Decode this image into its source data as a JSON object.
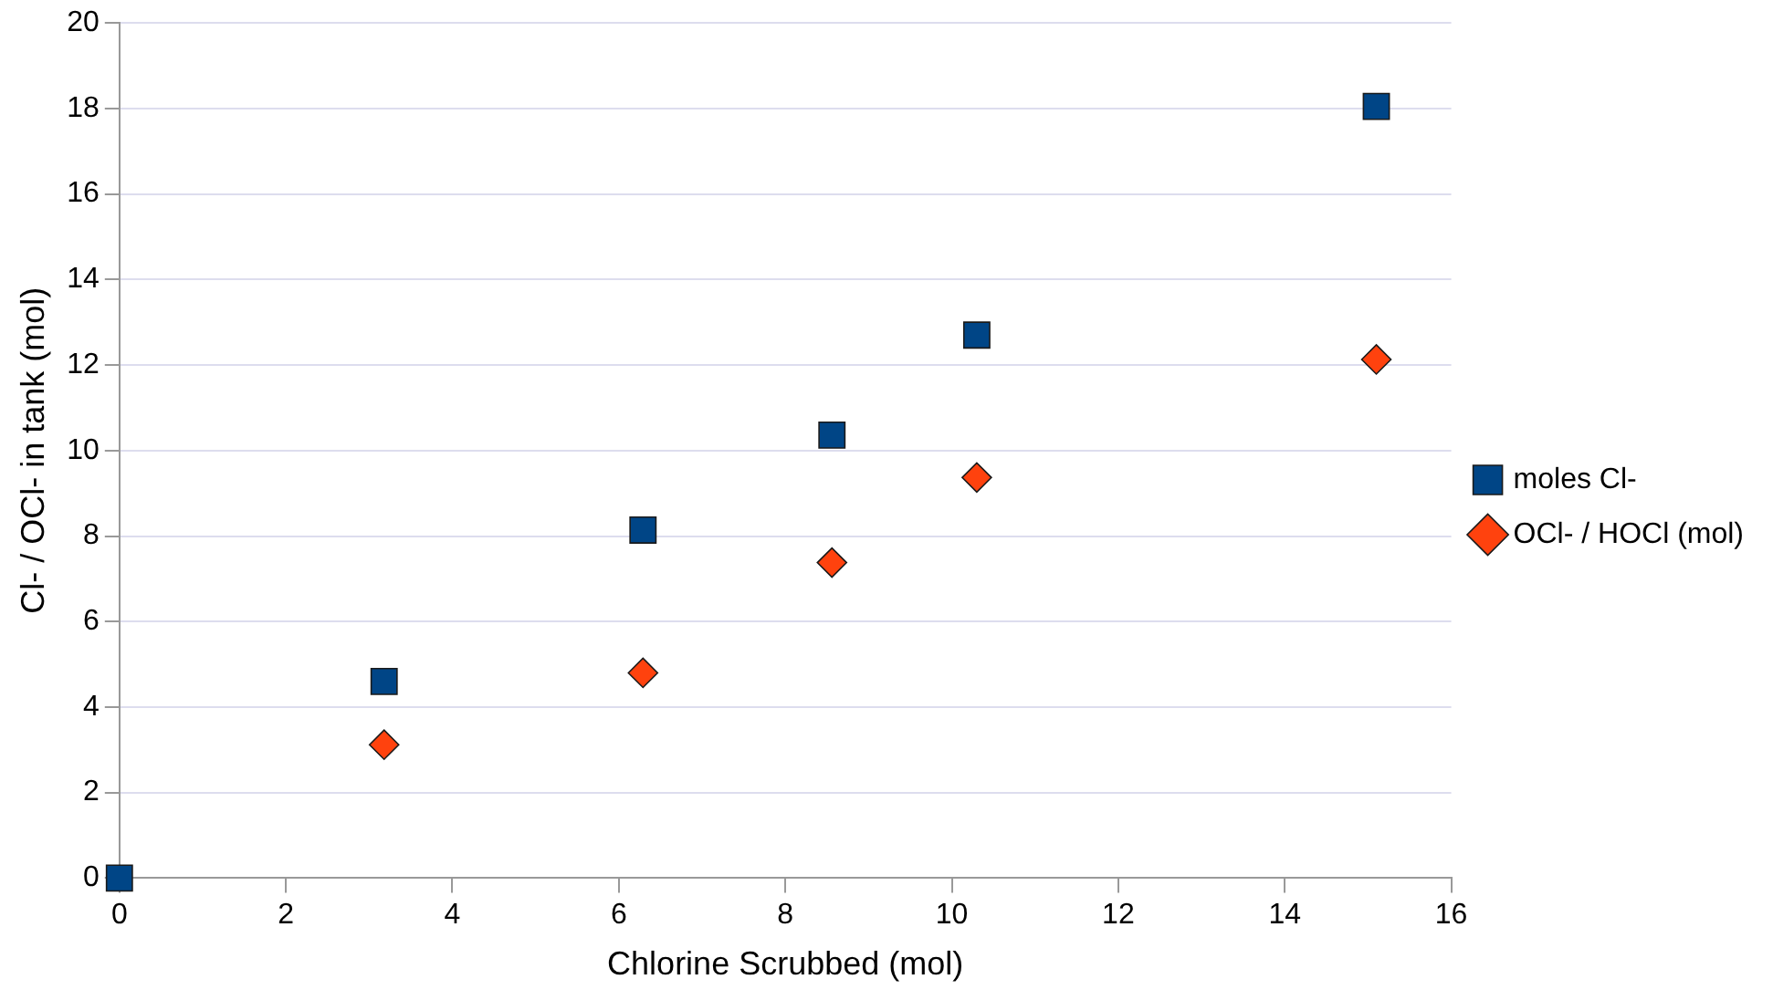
{
  "chart_data": {
    "type": "scatter",
    "xlabel": "Chlorine Scrubbed (mol)",
    "ylabel": "Cl- / OCl- in tank (mol)",
    "xlim": [
      0,
      16
    ],
    "xticks": [
      0,
      2,
      4,
      6,
      8,
      10,
      12,
      14,
      16
    ],
    "ylim": [
      0,
      20
    ],
    "yticks": [
      0,
      2,
      4,
      6,
      8,
      10,
      12,
      14,
      16,
      18,
      20
    ],
    "grid": "y",
    "legend": "right",
    "series": [
      {
        "name": "moles Cl-",
        "color": "#004586",
        "marker": "square",
        "x": [
          0,
          3.18,
          6.29,
          8.56,
          10.3,
          15.1
        ],
        "values": [
          0,
          4.6,
          8.14,
          10.36,
          12.7,
          18.05
        ]
      },
      {
        "name": "OCl- / HOCl (mol)",
        "color": "#ff420e",
        "marker": "diamond",
        "x": [
          3.18,
          6.29,
          8.56,
          10.3,
          15.1
        ],
        "values": [
          3.12,
          4.8,
          7.38,
          9.37,
          12.13
        ]
      }
    ]
  }
}
